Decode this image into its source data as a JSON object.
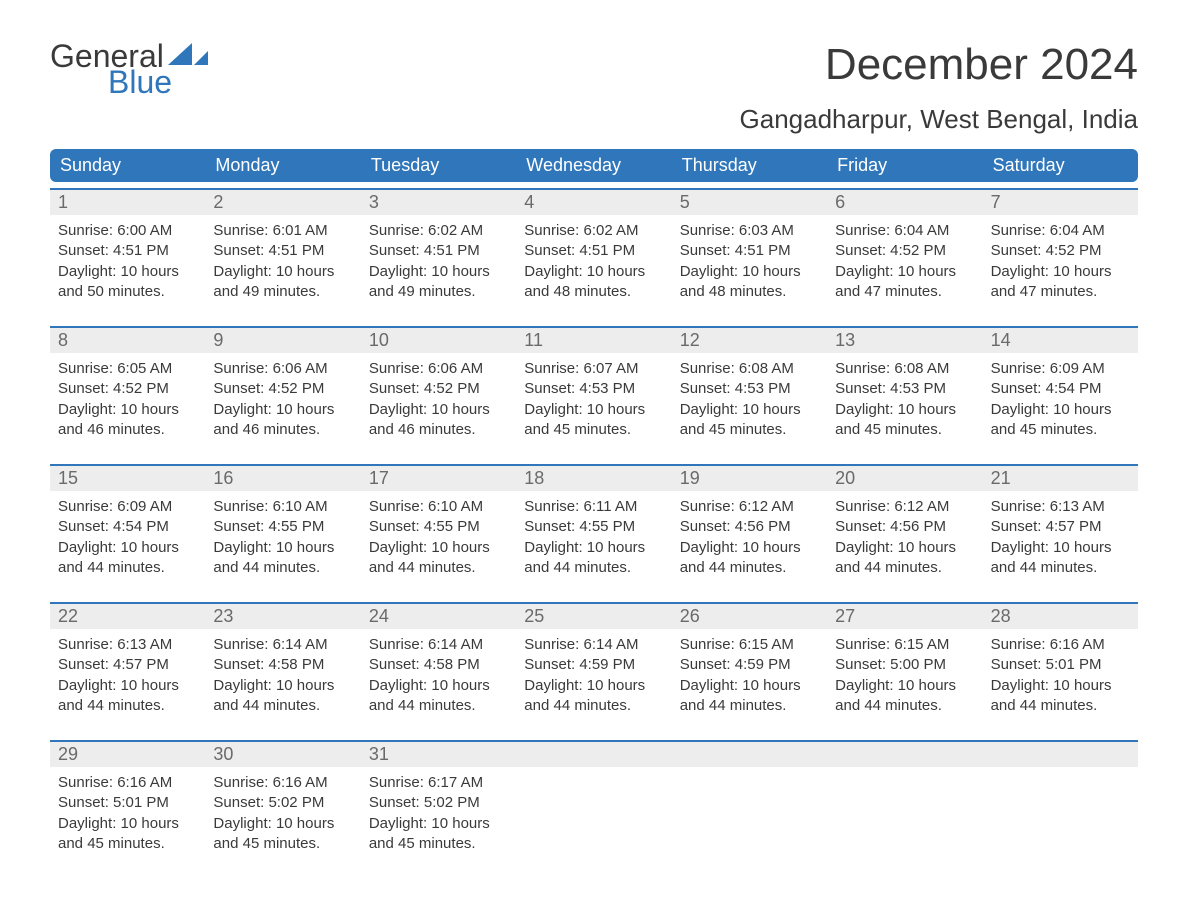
{
  "logo": {
    "word1": "General",
    "word2": "Blue"
  },
  "title": "December 2024",
  "location": "Gangadharpur, West Bengal, India",
  "colors": {
    "header_bg": "#2f76bb",
    "header_text": "#ffffff",
    "daynum_bg": "#ededed",
    "daynum_text": "#6a6a6a",
    "body_text": "#3a3a3a",
    "week_divider": "#2f76bb",
    "page_bg": "#ffffff"
  },
  "typography": {
    "title_fontsize": 44,
    "location_fontsize": 26,
    "dow_fontsize": 18,
    "daynum_fontsize": 18,
    "body_fontsize": 15
  },
  "days_of_week": [
    "Sunday",
    "Monday",
    "Tuesday",
    "Wednesday",
    "Thursday",
    "Friday",
    "Saturday"
  ],
  "weeks": [
    [
      {
        "n": "1",
        "sunrise": "Sunrise: 6:00 AM",
        "sunset": "Sunset: 4:51 PM",
        "d1": "Daylight: 10 hours",
        "d2": "and 50 minutes."
      },
      {
        "n": "2",
        "sunrise": "Sunrise: 6:01 AM",
        "sunset": "Sunset: 4:51 PM",
        "d1": "Daylight: 10 hours",
        "d2": "and 49 minutes."
      },
      {
        "n": "3",
        "sunrise": "Sunrise: 6:02 AM",
        "sunset": "Sunset: 4:51 PM",
        "d1": "Daylight: 10 hours",
        "d2": "and 49 minutes."
      },
      {
        "n": "4",
        "sunrise": "Sunrise: 6:02 AM",
        "sunset": "Sunset: 4:51 PM",
        "d1": "Daylight: 10 hours",
        "d2": "and 48 minutes."
      },
      {
        "n": "5",
        "sunrise": "Sunrise: 6:03 AM",
        "sunset": "Sunset: 4:51 PM",
        "d1": "Daylight: 10 hours",
        "d2": "and 48 minutes."
      },
      {
        "n": "6",
        "sunrise": "Sunrise: 6:04 AM",
        "sunset": "Sunset: 4:52 PM",
        "d1": "Daylight: 10 hours",
        "d2": "and 47 minutes."
      },
      {
        "n": "7",
        "sunrise": "Sunrise: 6:04 AM",
        "sunset": "Sunset: 4:52 PM",
        "d1": "Daylight: 10 hours",
        "d2": "and 47 minutes."
      }
    ],
    [
      {
        "n": "8",
        "sunrise": "Sunrise: 6:05 AM",
        "sunset": "Sunset: 4:52 PM",
        "d1": "Daylight: 10 hours",
        "d2": "and 46 minutes."
      },
      {
        "n": "9",
        "sunrise": "Sunrise: 6:06 AM",
        "sunset": "Sunset: 4:52 PM",
        "d1": "Daylight: 10 hours",
        "d2": "and 46 minutes."
      },
      {
        "n": "10",
        "sunrise": "Sunrise: 6:06 AM",
        "sunset": "Sunset: 4:52 PM",
        "d1": "Daylight: 10 hours",
        "d2": "and 46 minutes."
      },
      {
        "n": "11",
        "sunrise": "Sunrise: 6:07 AM",
        "sunset": "Sunset: 4:53 PM",
        "d1": "Daylight: 10 hours",
        "d2": "and 45 minutes."
      },
      {
        "n": "12",
        "sunrise": "Sunrise: 6:08 AM",
        "sunset": "Sunset: 4:53 PM",
        "d1": "Daylight: 10 hours",
        "d2": "and 45 minutes."
      },
      {
        "n": "13",
        "sunrise": "Sunrise: 6:08 AM",
        "sunset": "Sunset: 4:53 PM",
        "d1": "Daylight: 10 hours",
        "d2": "and 45 minutes."
      },
      {
        "n": "14",
        "sunrise": "Sunrise: 6:09 AM",
        "sunset": "Sunset: 4:54 PM",
        "d1": "Daylight: 10 hours",
        "d2": "and 45 minutes."
      }
    ],
    [
      {
        "n": "15",
        "sunrise": "Sunrise: 6:09 AM",
        "sunset": "Sunset: 4:54 PM",
        "d1": "Daylight: 10 hours",
        "d2": "and 44 minutes."
      },
      {
        "n": "16",
        "sunrise": "Sunrise: 6:10 AM",
        "sunset": "Sunset: 4:55 PM",
        "d1": "Daylight: 10 hours",
        "d2": "and 44 minutes."
      },
      {
        "n": "17",
        "sunrise": "Sunrise: 6:10 AM",
        "sunset": "Sunset: 4:55 PM",
        "d1": "Daylight: 10 hours",
        "d2": "and 44 minutes."
      },
      {
        "n": "18",
        "sunrise": "Sunrise: 6:11 AM",
        "sunset": "Sunset: 4:55 PM",
        "d1": "Daylight: 10 hours",
        "d2": "and 44 minutes."
      },
      {
        "n": "19",
        "sunrise": "Sunrise: 6:12 AM",
        "sunset": "Sunset: 4:56 PM",
        "d1": "Daylight: 10 hours",
        "d2": "and 44 minutes."
      },
      {
        "n": "20",
        "sunrise": "Sunrise: 6:12 AM",
        "sunset": "Sunset: 4:56 PM",
        "d1": "Daylight: 10 hours",
        "d2": "and 44 minutes."
      },
      {
        "n": "21",
        "sunrise": "Sunrise: 6:13 AM",
        "sunset": "Sunset: 4:57 PM",
        "d1": "Daylight: 10 hours",
        "d2": "and 44 minutes."
      }
    ],
    [
      {
        "n": "22",
        "sunrise": "Sunrise: 6:13 AM",
        "sunset": "Sunset: 4:57 PM",
        "d1": "Daylight: 10 hours",
        "d2": "and 44 minutes."
      },
      {
        "n": "23",
        "sunrise": "Sunrise: 6:14 AM",
        "sunset": "Sunset: 4:58 PM",
        "d1": "Daylight: 10 hours",
        "d2": "and 44 minutes."
      },
      {
        "n": "24",
        "sunrise": "Sunrise: 6:14 AM",
        "sunset": "Sunset: 4:58 PM",
        "d1": "Daylight: 10 hours",
        "d2": "and 44 minutes."
      },
      {
        "n": "25",
        "sunrise": "Sunrise: 6:14 AM",
        "sunset": "Sunset: 4:59 PM",
        "d1": "Daylight: 10 hours",
        "d2": "and 44 minutes."
      },
      {
        "n": "26",
        "sunrise": "Sunrise: 6:15 AM",
        "sunset": "Sunset: 4:59 PM",
        "d1": "Daylight: 10 hours",
        "d2": "and 44 minutes."
      },
      {
        "n": "27",
        "sunrise": "Sunrise: 6:15 AM",
        "sunset": "Sunset: 5:00 PM",
        "d1": "Daylight: 10 hours",
        "d2": "and 44 minutes."
      },
      {
        "n": "28",
        "sunrise": "Sunrise: 6:16 AM",
        "sunset": "Sunset: 5:01 PM",
        "d1": "Daylight: 10 hours",
        "d2": "and 44 minutes."
      }
    ],
    [
      {
        "n": "29",
        "sunrise": "Sunrise: 6:16 AM",
        "sunset": "Sunset: 5:01 PM",
        "d1": "Daylight: 10 hours",
        "d2": "and 45 minutes."
      },
      {
        "n": "30",
        "sunrise": "Sunrise: 6:16 AM",
        "sunset": "Sunset: 5:02 PM",
        "d1": "Daylight: 10 hours",
        "d2": "and 45 minutes."
      },
      {
        "n": "31",
        "sunrise": "Sunrise: 6:17 AM",
        "sunset": "Sunset: 5:02 PM",
        "d1": "Daylight: 10 hours",
        "d2": "and 45 minutes."
      },
      null,
      null,
      null,
      null
    ]
  ]
}
